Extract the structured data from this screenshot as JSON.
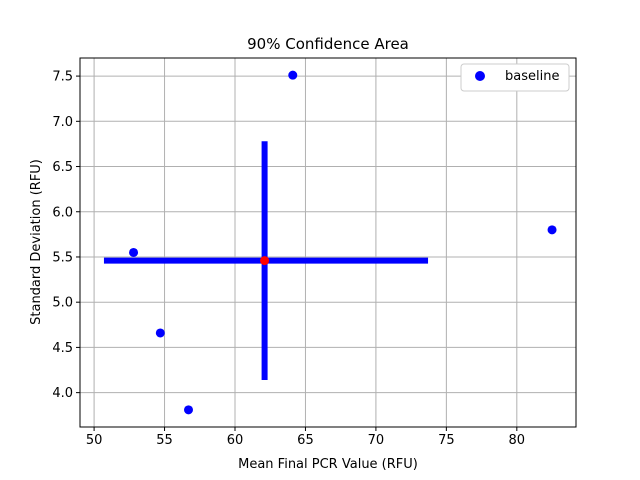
{
  "chart_data": {
    "type": "scatter",
    "title": "90% Confidence Area",
    "xlabel": "Mean Final PCR Value (RFU)",
    "ylabel": "Standard Deviation (RFU)",
    "xlim": [
      49.0,
      84.2
    ],
    "ylim": [
      3.62,
      7.7
    ],
    "xticks": [
      50,
      55,
      60,
      65,
      70,
      75,
      80
    ],
    "yticks": [
      4.0,
      4.5,
      5.0,
      5.5,
      6.0,
      6.5,
      7.0,
      7.5
    ],
    "xtick_labels": [
      "50",
      "55",
      "60",
      "65",
      "70",
      "75",
      "80"
    ],
    "ytick_labels": [
      "4.0",
      "4.5",
      "5.0",
      "5.5",
      "6.0",
      "6.5",
      "7.0",
      "7.5"
    ],
    "grid": true,
    "legend_position": "top-right",
    "series": [
      {
        "name": "baseline",
        "color": "#0000ff",
        "points": [
          {
            "x": 64.1,
            "y": 7.51
          },
          {
            "x": 82.5,
            "y": 5.8
          },
          {
            "x": 52.8,
            "y": 5.55
          },
          {
            "x": 54.7,
            "y": 4.66
          },
          {
            "x": 56.7,
            "y": 3.81
          }
        ]
      }
    ],
    "mean_point": {
      "x": 62.1,
      "y": 5.46,
      "color": "#ff0000"
    },
    "confidence_cross": {
      "color": "#0000ff",
      "horizontal": {
        "x_start": 50.7,
        "x_end": 73.7,
        "y": 5.46
      },
      "vertical": {
        "x": 62.1,
        "y_start": 4.14,
        "y_end": 6.78
      }
    }
  }
}
